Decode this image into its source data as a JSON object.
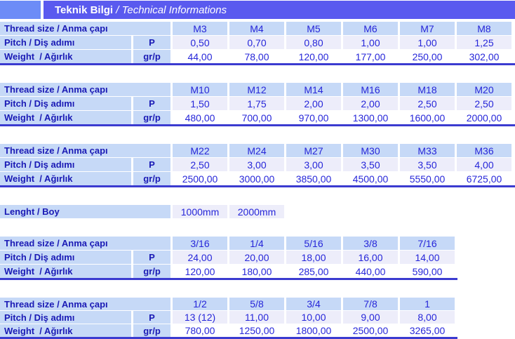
{
  "header": {
    "title_bold": "Teknik Bilgi",
    "title_italic": " / Technical Informations"
  },
  "row_labels": {
    "thread": "Thread size / Anma çapı",
    "pitch": "Pitch / Diş adımı",
    "weight": "Weight  / Ağırlık",
    "pitch_unit": "P",
    "weight_unit": "gr/p"
  },
  "length": {
    "label": "Lenght / Boy",
    "values": [
      "1000mm",
      "2000mm"
    ]
  },
  "tables": [
    {
      "threads": [
        "M3",
        "M4",
        "M5",
        "M6",
        "M7",
        "M8"
      ],
      "pitch": [
        "0,50",
        "0,70",
        "0,80",
        "1,00",
        "1,00",
        "1,25"
      ],
      "weight": [
        "44,00",
        "78,00",
        "120,00",
        "177,00",
        "250,00",
        "302,00"
      ]
    },
    {
      "threads": [
        "M10",
        "M12",
        "M14",
        "M16",
        "M18",
        "M20"
      ],
      "pitch": [
        "1,50",
        "1,75",
        "2,00",
        "2,00",
        "2,50",
        "2,50"
      ],
      "weight": [
        "480,00",
        "700,00",
        "970,00",
        "1300,00",
        "1600,00",
        "2000,00"
      ]
    },
    {
      "threads": [
        "M22",
        "M24",
        "M27",
        "M30",
        "M33",
        "M36"
      ],
      "pitch": [
        "2,50",
        "3,00",
        "3,00",
        "3,50",
        "3,50",
        "4,00"
      ],
      "weight": [
        "2500,00",
        "3000,00",
        "3850,00",
        "4500,00",
        "5550,00",
        "6725,00"
      ]
    },
    {
      "threads": [
        "3/16",
        "1/4",
        "5/16",
        "3/8",
        "7/16"
      ],
      "pitch": [
        "24,00",
        "20,00",
        "18,00",
        "16,00",
        "14,00"
      ],
      "weight": [
        "120,00",
        "180,00",
        "285,00",
        "440,00",
        "590,00"
      ]
    },
    {
      "threads": [
        "1/2",
        "5/8",
        "3/4",
        "7/8",
        "1"
      ],
      "pitch": [
        "13 (12)",
        "11,00",
        "10,00",
        "9,00",
        "8,00"
      ],
      "weight": [
        "780,00",
        "1250,00",
        "1800,00",
        "2500,00",
        "3265,00"
      ]
    }
  ],
  "colors": {
    "band": "#5a5aef",
    "corner": "#6d8cf7",
    "cell_blue": "#c6d9f7",
    "cell_lavender": "#ededfa",
    "border": "#3b3bd0",
    "label_text": "#1a1ab5",
    "value_text": "#2626d9"
  }
}
